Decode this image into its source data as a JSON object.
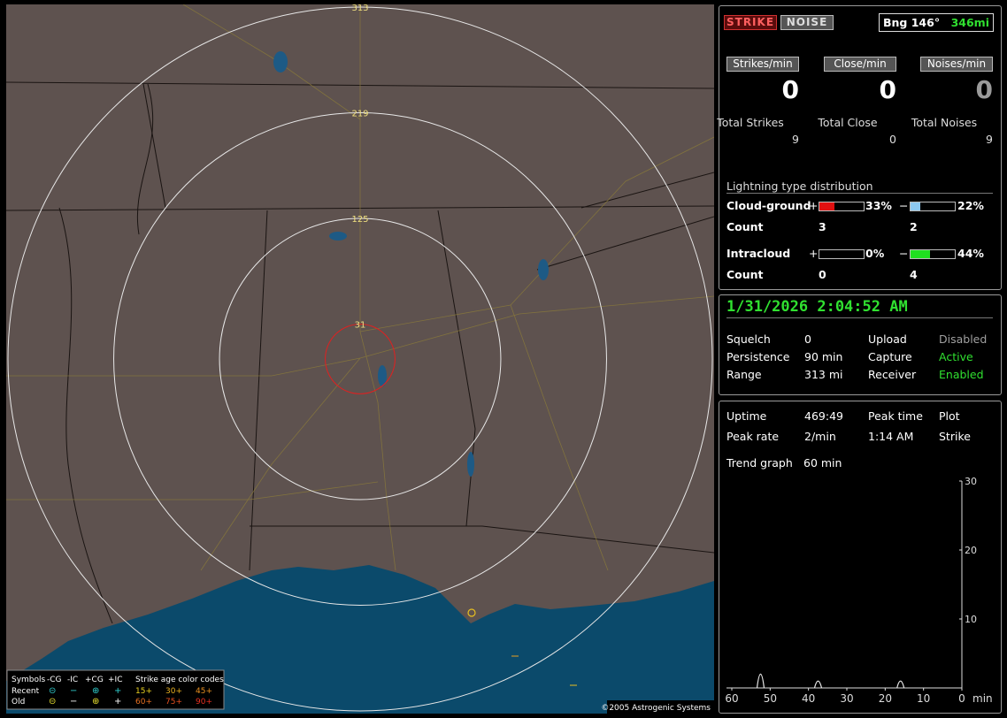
{
  "map": {
    "range_rings": [
      313,
      219,
      125,
      31
    ],
    "legend": {
      "symbols_label": "Symbols",
      "symbol_headers": [
        "-CG",
        "-IC",
        "+CG",
        "+IC"
      ],
      "rows": [
        "Recent",
        "Old"
      ],
      "age_title": "Strike age color codes",
      "age_codes": [
        [
          "15+",
          "30+",
          "45+"
        ],
        [
          "60+",
          "75+",
          "90+"
        ]
      ]
    },
    "copyright": "©2005 Astrogenic Systems"
  },
  "header": {
    "strike_button": "STRIKE",
    "noise_button": "NOISE",
    "bearing": "Bng 146°",
    "distance": "346mi"
  },
  "rates": [
    {
      "label": "Strikes/min",
      "value": 0,
      "color": "#ffffff"
    },
    {
      "label": "Close/min",
      "value": 0,
      "color": "#ffffff"
    },
    {
      "label": "Noises/min",
      "value": 0,
      "color": "#9a9a9a"
    }
  ],
  "totals": [
    {
      "label": "Total Strikes",
      "value": 9
    },
    {
      "label": "Total Close",
      "value": 0
    },
    {
      "label": "Total Noises",
      "value": 9
    }
  ],
  "distribution": {
    "title": "Lightning type distribution",
    "count_label": "Count",
    "types": [
      {
        "name": "Cloud-ground",
        "pos_sign": "+",
        "pos": 33,
        "pos_label": "33%",
        "pos_color": "#e01010",
        "neg_sign": "−",
        "neg": 22,
        "neg_label": "22%",
        "neg_color": "#8cc8f0",
        "pos_count": 3,
        "neg_count": 2
      },
      {
        "name": "Intracloud",
        "pos_sign": "+",
        "pos": 0,
        "pos_label": "0%",
        "pos_color": "#e01010",
        "neg_sign": "−",
        "neg": 44,
        "neg_label": "44%",
        "neg_color": "#20e020",
        "pos_count": 0,
        "neg_count": 4
      }
    ]
  },
  "status": {
    "datetime": "1/31/2026 2:04:52 AM",
    "rows": [
      [
        "Squelch",
        "0",
        "Upload",
        "Disabled"
      ],
      [
        "Persistence",
        "90 min",
        "Capture",
        "Active"
      ],
      [
        "Range",
        "313 mi",
        "Receiver",
        "Enabled"
      ]
    ],
    "value_colors": [
      "#a0a0a0",
      "#30e030",
      "#30e030"
    ]
  },
  "stats": {
    "rows": [
      [
        "Uptime",
        "469:49",
        "Peak time",
        "Plot"
      ],
      [
        "Peak rate",
        "2/min",
        "1:14 AM",
        "Strike"
      ],
      [
        "Trend graph",
        "60 min"
      ]
    ]
  },
  "trend_graph": {
    "x": [
      52.5,
      37.5,
      16
    ],
    "values": [
      2,
      1,
      1
    ],
    "xlim": [
      60,
      0
    ],
    "ylim": [
      0,
      30
    ],
    "xticks": [
      60,
      50,
      40,
      30,
      20,
      10,
      0
    ],
    "yticks": [
      10,
      20,
      30
    ],
    "x_unit": "min"
  }
}
